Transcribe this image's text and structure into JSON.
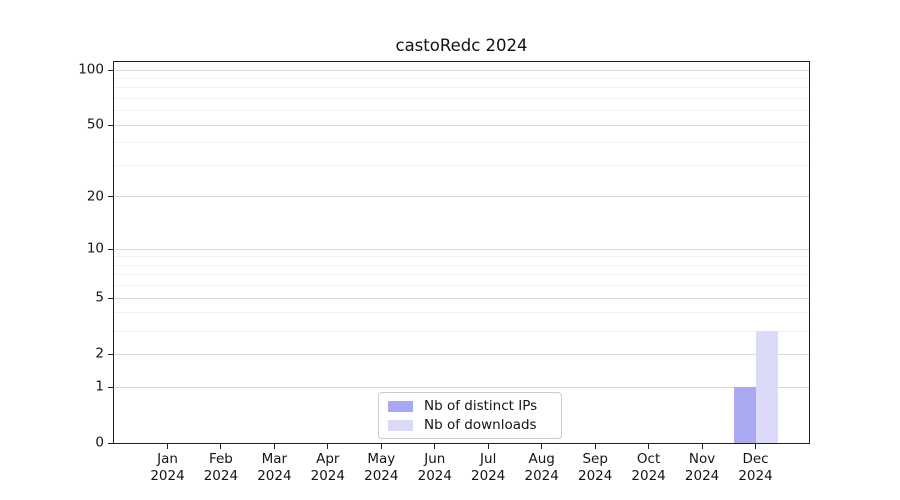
{
  "title": "castoRedc 2024",
  "chart_data": {
    "type": "bar",
    "title": "castoRedc 2024",
    "x_months": [
      "Jan",
      "Feb",
      "Mar",
      "Apr",
      "May",
      "Jun",
      "Jul",
      "Aug",
      "Sep",
      "Oct",
      "Nov",
      "Dec"
    ],
    "x_year": "2024",
    "series": [
      {
        "name": "Nb of distinct IPs",
        "color": "#a8a8f3",
        "values": [
          0,
          0,
          0,
          0,
          0,
          0,
          0,
          0,
          0,
          0,
          0,
          1
        ]
      },
      {
        "name": "Nb of downloads",
        "color": "#dbdbf9",
        "values": [
          0,
          0,
          0,
          0,
          0,
          0,
          0,
          0,
          0,
          0,
          0,
          3
        ]
      }
    ],
    "y_scale": "log1p",
    "y_ticks": [
      0,
      1,
      2,
      5,
      10,
      20,
      50,
      100
    ],
    "y_minor_grid": [
      3,
      4,
      6,
      7,
      8,
      9,
      30,
      40,
      60,
      70,
      80,
      90
    ],
    "ylim": [
      0,
      100
    ],
    "grid": true,
    "legend_position": "lower center"
  },
  "colors": {
    "grid_major": "#d9d9d9",
    "grid_minor": "#f1f1f1",
    "spine": "#1f1f1f",
    "text": "#151515",
    "background": "#ffffff"
  }
}
